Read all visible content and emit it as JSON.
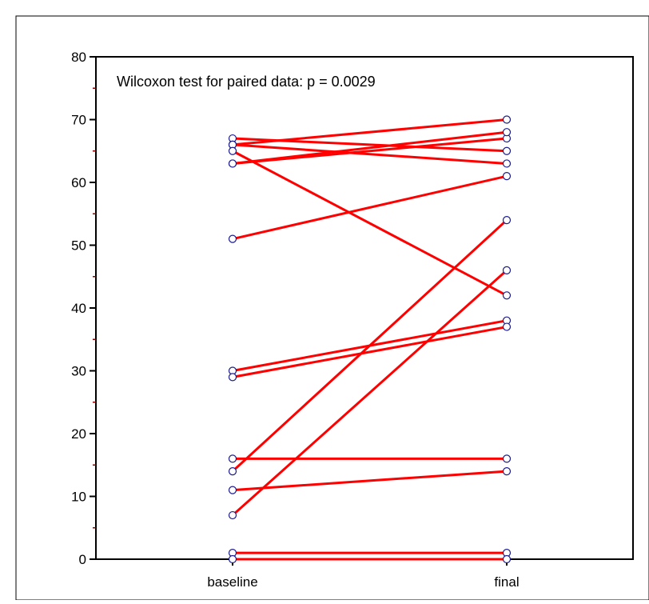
{
  "chart_data": {
    "type": "line",
    "title": "",
    "xlabel": "",
    "ylabel": "",
    "annotation": "Wilcoxon test for paired data: p = 0.0029",
    "categories": [
      "baseline",
      "final"
    ],
    "ylim": [
      0,
      80
    ],
    "yticks": [
      0,
      10,
      20,
      30,
      40,
      50,
      60,
      70,
      80
    ],
    "yticks_labels": [
      "0",
      "10",
      "20",
      "30",
      "40",
      "50",
      "60",
      "70",
      "80"
    ],
    "grid": false,
    "legend": "none",
    "line_color": "#ff0000",
    "marker_color": "#1a1a8c",
    "pairs": [
      [
        67,
        65
      ],
      [
        66,
        70
      ],
      [
        66,
        63
      ],
      [
        65,
        42
      ],
      [
        63,
        67
      ],
      [
        63,
        68
      ],
      [
        51,
        61
      ],
      [
        30,
        38
      ],
      [
        29,
        37
      ],
      [
        16,
        16
      ],
      [
        14,
        54
      ],
      [
        11,
        14
      ],
      [
        7,
        46
      ],
      [
        1,
        1
      ],
      [
        0,
        0
      ]
    ]
  }
}
